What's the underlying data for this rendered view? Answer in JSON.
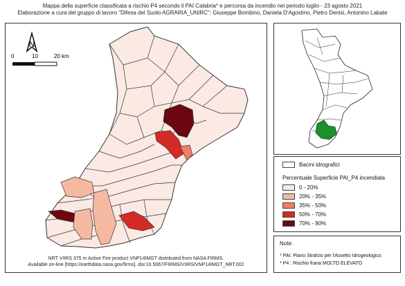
{
  "title": {
    "line1": "Mappa della superficie classificata a rischio P4 secondo il PAI Calabria* e  percorsa da incendio nel periodo luglio - 23 agosto 2021",
    "line2": "Elaborazione a cura del gruppo di lavoro \"Difesa del Suolo AGRARIA_UNIRC\": Giuseppe Bombino, Daniela D'Agostino, Pietro Denisi, Antonino Labate"
  },
  "scale_bar": {
    "labels": [
      "0",
      "10",
      "20 km"
    ]
  },
  "north_arrow": {
    "label": "N"
  },
  "legend": {
    "basins_label": "Bacini idrografici",
    "heading": "Percentuale Superficie PAI_P4 incendiata",
    "classes": [
      {
        "label": "0 - 20%",
        "color": "#fbe9e3"
      },
      {
        "label": "20% - 35%",
        "color": "#f5b9a1"
      },
      {
        "label": "35% - 50%",
        "color": "#ef7e63"
      },
      {
        "label": "50% - 70%",
        "color": "#d42a25"
      },
      {
        "label": "70% - 90%",
        "color": "#6b0810"
      }
    ]
  },
  "notes": {
    "heading": "Note:",
    "items": [
      "* PAI: Piano Stralcio per l'Assetto Idrogeologico",
      "* P4 : Rischio frana MOLTO ELEVATO"
    ]
  },
  "source": {
    "line1": "NRT VIIRS 375 m Active Fire product VNP14IMGT distributed from NASA FIRMS.",
    "line2": "Available on-line [https://earthdata.nasa.gov/firms].  doi:10.5067/FIRMS/VIIRS/VNP14IMGT_NRT.002"
  },
  "colors": {
    "basin_outline": "#333333",
    "inset_highlight": "#1e8f2e",
    "base": "#fbe9e3"
  }
}
